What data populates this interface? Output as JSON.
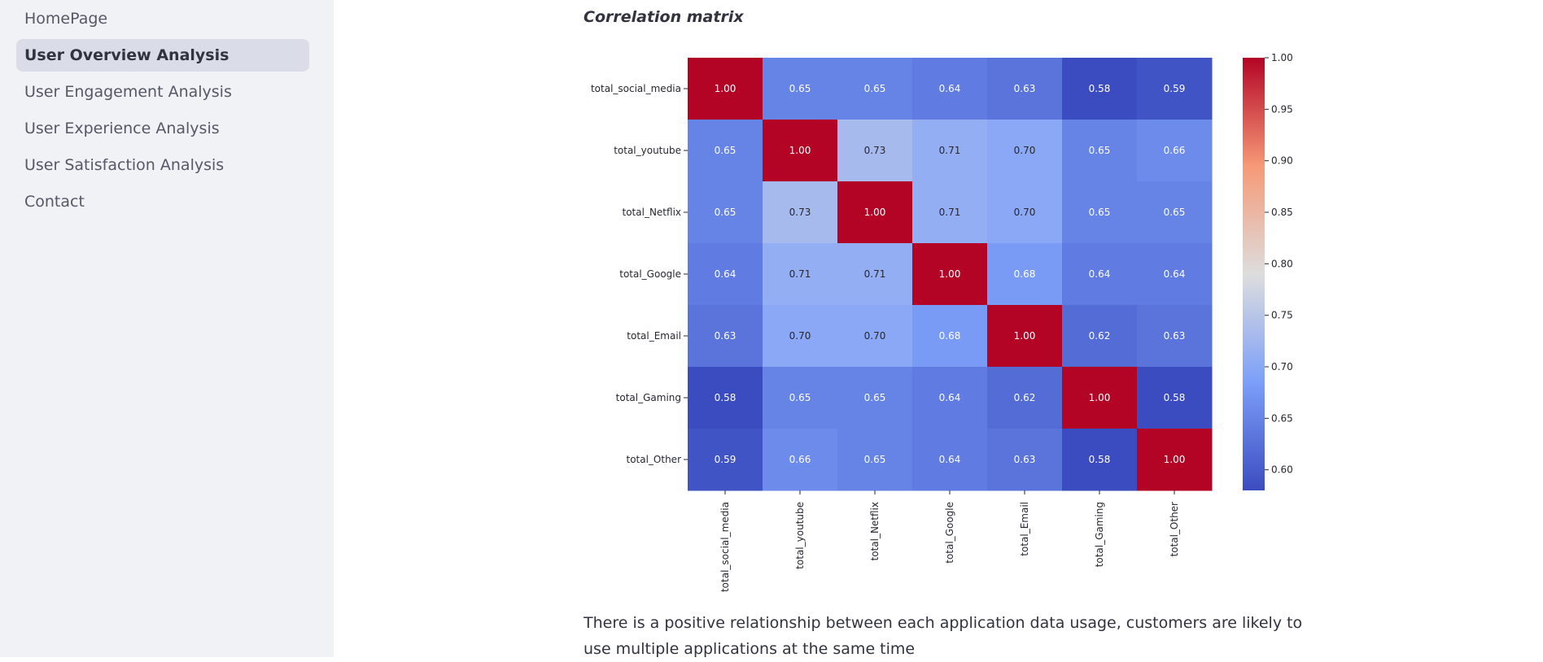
{
  "sidebar": {
    "items": [
      {
        "label": "HomePage",
        "active": false
      },
      {
        "label": "User Overview Analysis",
        "active": true
      },
      {
        "label": "User Engagement Analysis",
        "active": false
      },
      {
        "label": "User Experience Analysis",
        "active": false
      },
      {
        "label": "User Satisfaction Analysis",
        "active": false
      },
      {
        "label": "Contact",
        "active": false
      }
    ]
  },
  "main": {
    "caption": "Correlation matrix",
    "description": "There is a positive relationship between each application data usage, customers are likely to use multiple applications at the same time"
  },
  "chart_data": {
    "type": "heatmap",
    "title": "",
    "colormap": "coolwarm",
    "row_labels": [
      "total_social_media",
      "total_youtube",
      "total_Netflix",
      "total_Google",
      "total_Email",
      "total_Gaming",
      "total_Other"
    ],
    "col_labels": [
      "total_social_media",
      "total_youtube",
      "total_Netflix",
      "total_Google",
      "total_Email",
      "total_Gaming",
      "total_Other"
    ],
    "values": [
      [
        1.0,
        0.65,
        0.65,
        0.64,
        0.63,
        0.58,
        0.59
      ],
      [
        0.65,
        1.0,
        0.73,
        0.71,
        0.7,
        0.65,
        0.66
      ],
      [
        0.65,
        0.73,
        1.0,
        0.71,
        0.7,
        0.65,
        0.65
      ],
      [
        0.64,
        0.71,
        0.71,
        1.0,
        0.68,
        0.64,
        0.64
      ],
      [
        0.63,
        0.7,
        0.7,
        0.68,
        1.0,
        0.62,
        0.63
      ],
      [
        0.58,
        0.65,
        0.65,
        0.64,
        0.62,
        1.0,
        0.58
      ],
      [
        0.59,
        0.66,
        0.65,
        0.64,
        0.63,
        0.58,
        1.0
      ]
    ],
    "annotations_format": "0.00",
    "colorbar": {
      "vmin": 0.58,
      "vmax": 1.0,
      "ticks": [
        0.6,
        0.65,
        0.7,
        0.75,
        0.8,
        0.85,
        0.9,
        0.95,
        1.0
      ],
      "tick_labels": [
        "0.60",
        "0.65",
        "0.70",
        "0.75",
        "0.80",
        "0.85",
        "0.90",
        "0.95",
        "1.00"
      ]
    }
  }
}
